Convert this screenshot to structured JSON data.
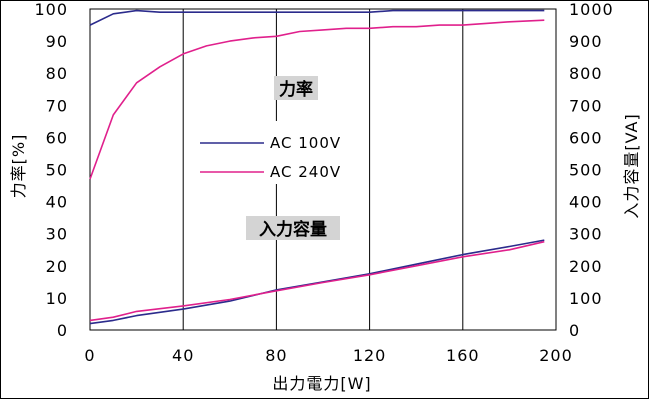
{
  "chart_data": {
    "type": "line",
    "xlabel": "出力電力[W]",
    "ylabel_left": "力率[%]",
    "ylabel_right": "入力容量[VA]",
    "xlim": [
      0,
      200
    ],
    "ylim_left": [
      0,
      100
    ],
    "ylim_right": [
      0,
      1000
    ],
    "x_ticks": [
      0,
      40,
      80,
      120,
      160,
      200
    ],
    "y_ticks_left": [
      0,
      10,
      20,
      30,
      40,
      50,
      60,
      70,
      80,
      90,
      100
    ],
    "y_ticks_right": [
      0,
      100,
      200,
      300,
      400,
      500,
      600,
      700,
      800,
      900,
      1000
    ],
    "grid": true,
    "legend": [
      {
        "name": "AC 100V",
        "color": "#2b2b8c"
      },
      {
        "name": "AC 240V",
        "color": "#e0208c"
      }
    ],
    "annotations": [
      {
        "text": "力率"
      },
      {
        "text": "入力容量"
      }
    ],
    "series": [
      {
        "name": "AC 100V",
        "group": "力率",
        "axis": "left",
        "color": "#2b2b8c",
        "x": [
          0,
          10,
          20,
          30,
          40,
          60,
          80,
          100,
          120,
          130,
          140,
          160,
          180,
          195
        ],
        "values": [
          95,
          98.5,
          99.5,
          99,
          99,
          99,
          99,
          99,
          99,
          99.5,
          99.5,
          99.5,
          99.5,
          99.5
        ]
      },
      {
        "name": "AC 240V",
        "group": "力率",
        "axis": "left",
        "color": "#e0208c",
        "x": [
          0,
          10,
          20,
          30,
          40,
          50,
          60,
          70,
          80,
          90,
          100,
          110,
          120,
          130,
          140,
          150,
          160,
          170,
          180,
          195
        ],
        "values": [
          47,
          67,
          77,
          82,
          86,
          88.5,
          90,
          91,
          91.5,
          93,
          93.5,
          94,
          94,
          94.5,
          94.5,
          95,
          95,
          95.5,
          96,
          96.5
        ]
      },
      {
        "name": "AC 100V",
        "group": "入力容量",
        "axis": "right",
        "color": "#2b2b8c",
        "x": [
          0,
          10,
          20,
          40,
          60,
          80,
          100,
          120,
          140,
          160,
          180,
          195
        ],
        "values": [
          20,
          30,
          45,
          65,
          90,
          125,
          150,
          175,
          205,
          235,
          260,
          280
        ]
      },
      {
        "name": "AC 240V",
        "group": "入力容量",
        "axis": "right",
        "color": "#e0208c",
        "x": [
          0,
          10,
          20,
          40,
          60,
          80,
          100,
          120,
          140,
          160,
          180,
          195
        ],
        "values": [
          30,
          40,
          58,
          75,
          95,
          122,
          148,
          172,
          200,
          228,
          250,
          275
        ]
      }
    ]
  }
}
